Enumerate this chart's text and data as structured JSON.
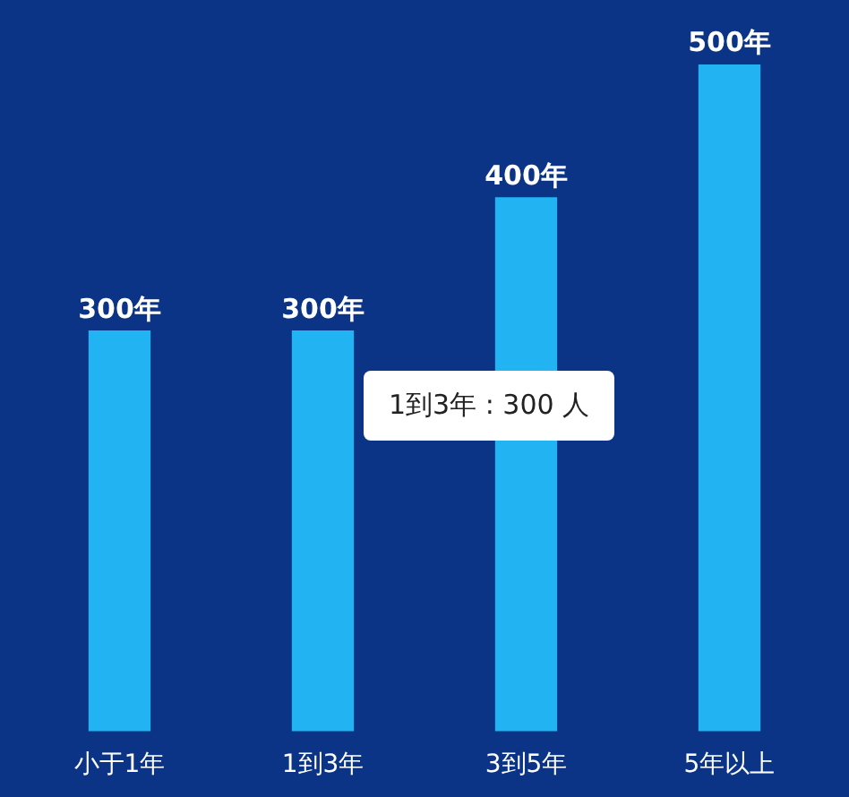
{
  "chart_data": {
    "type": "bar",
    "categories": [
      "小于1年",
      "1到3年",
      "3到5年",
      "5年以上"
    ],
    "values": [
      300,
      300,
      400,
      500
    ],
    "color": "#22b4f2",
    "value_labels": [
      "300年",
      "300年",
      "400年",
      "500年"
    ],
    "annotations": [
      "1到3年 : 300 人"
    ],
    "grid": false,
    "legend": false,
    "tick_labels": "x"
  }
}
